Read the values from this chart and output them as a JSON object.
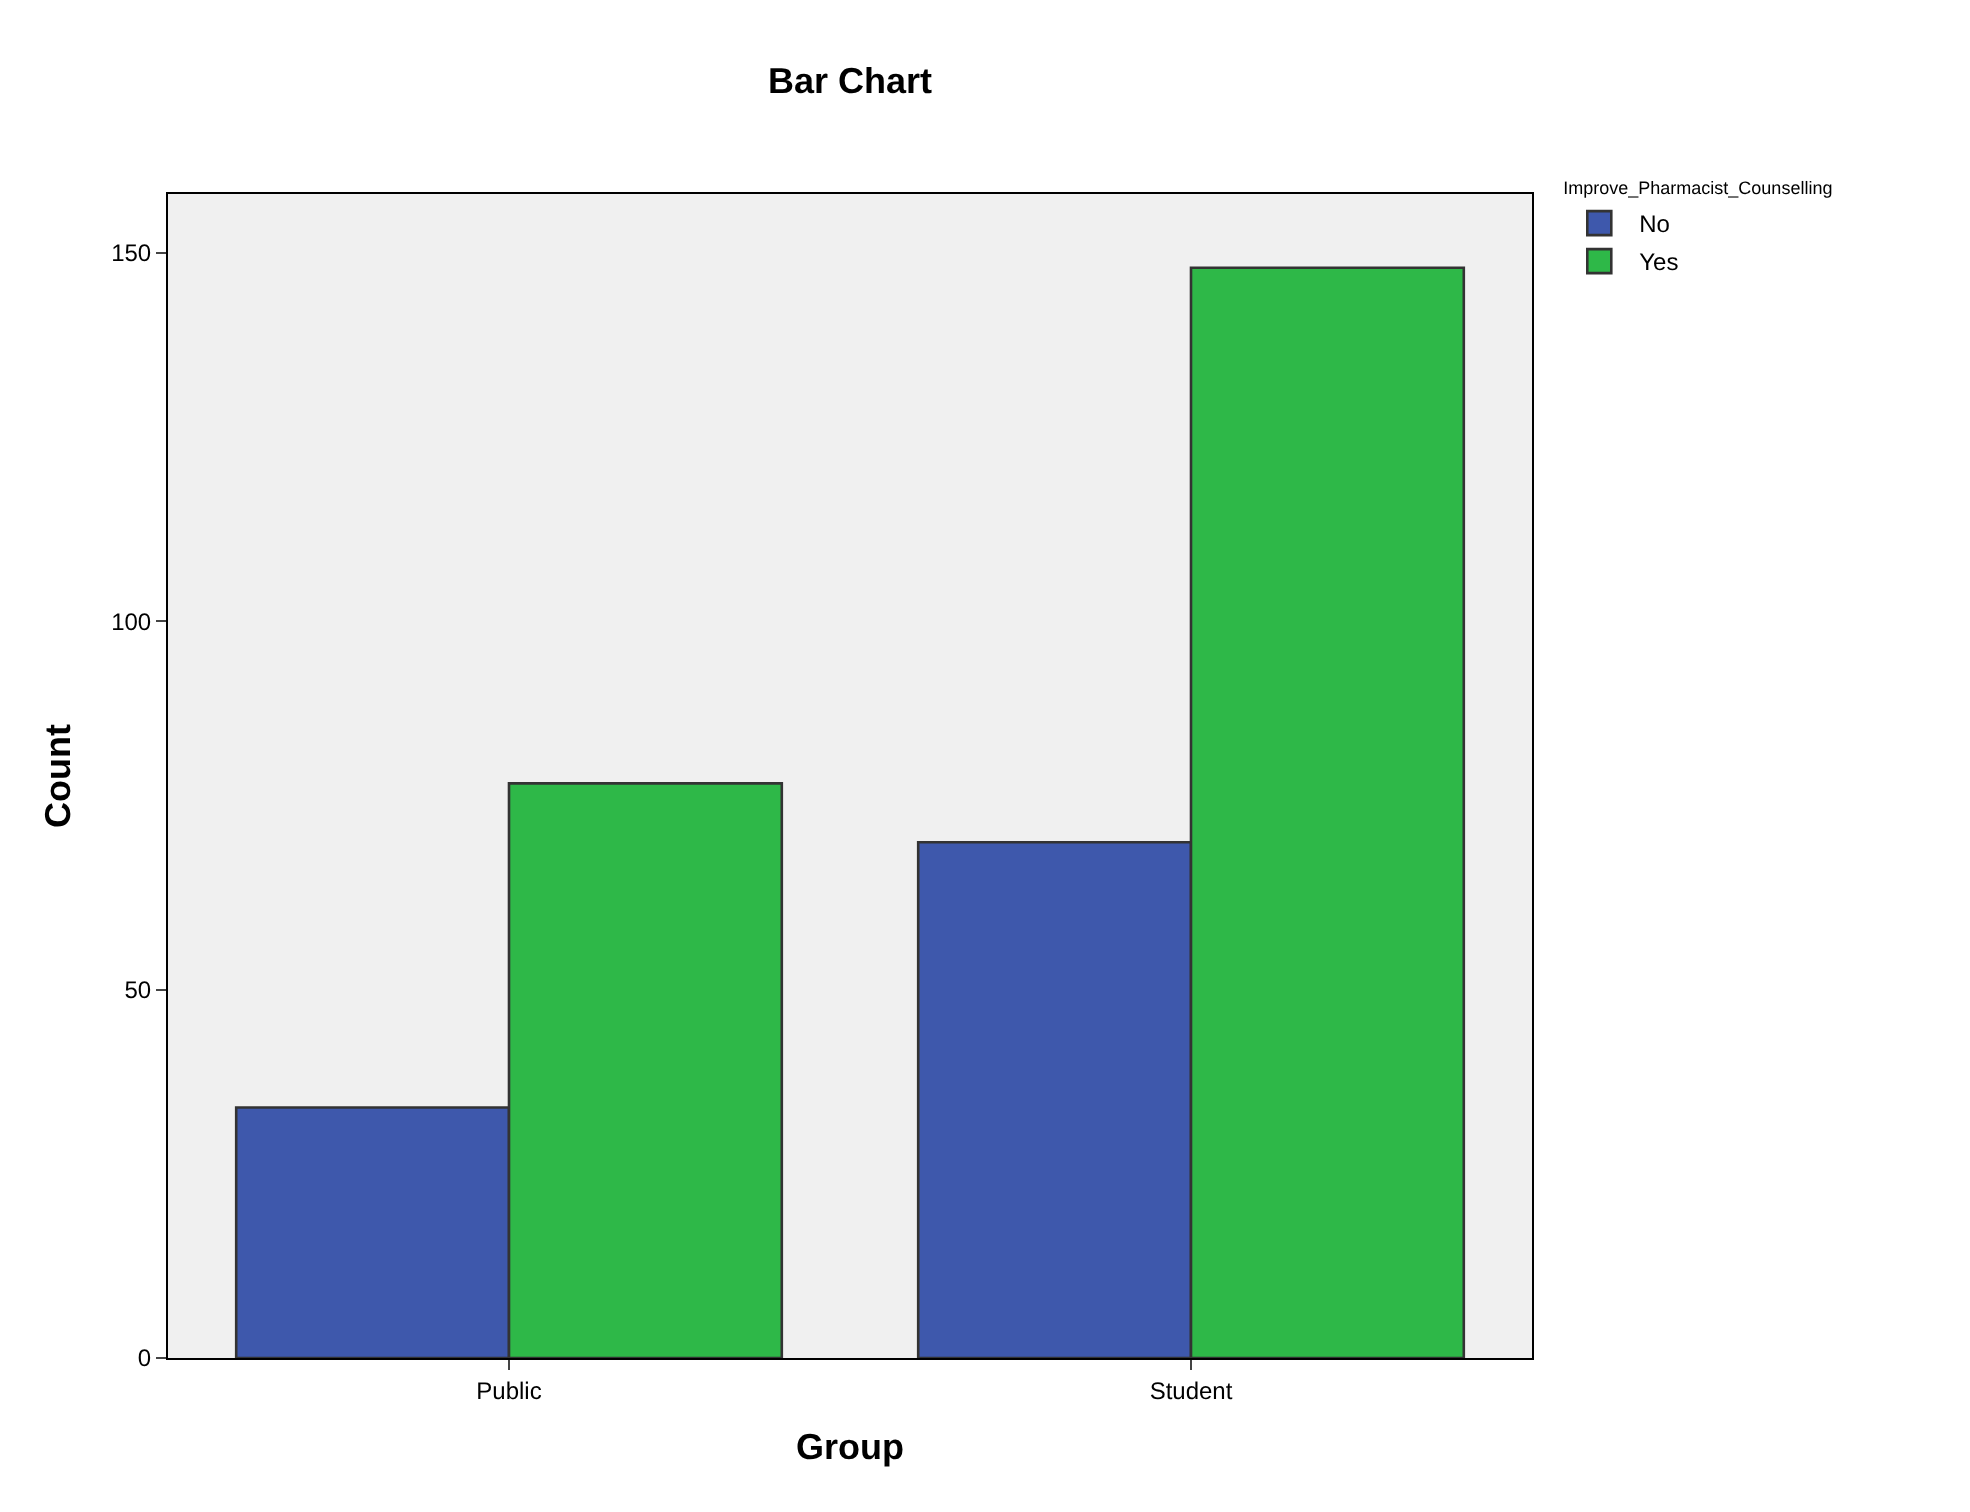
{
  "chart_data": {
    "type": "bar",
    "title": "Bar Chart",
    "xlabel": "Group",
    "ylabel": "Count",
    "legend_title": "Improve_Pharmacist_Counselling",
    "categories": [
      "Public",
      "Student"
    ],
    "series": [
      {
        "name": "No",
        "color": "#3e58ac",
        "values": [
          34,
          70
        ]
      },
      {
        "name": "Yes",
        "color": "#2eb848",
        "values": [
          78,
          148
        ]
      }
    ],
    "ylim": [
      0,
      158
    ],
    "yticks": [
      0,
      50,
      100,
      150
    ],
    "grid": false,
    "legend": "top right"
  }
}
